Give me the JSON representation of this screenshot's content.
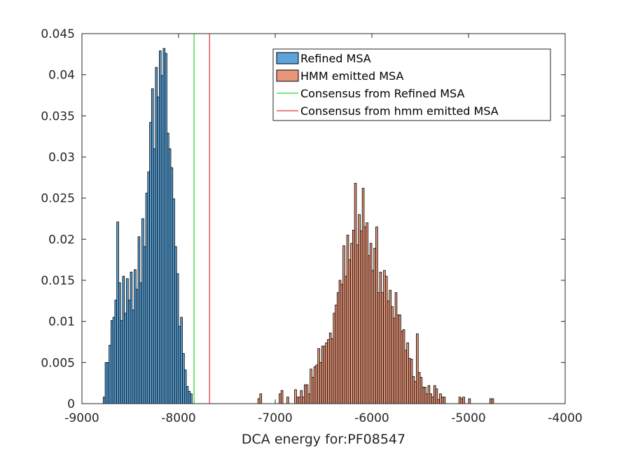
{
  "chart_data": {
    "type": "bar",
    "title": "",
    "xlabel": "DCA energy for:PF08547",
    "ylabel": "",
    "xlim": [
      -9000,
      -4000
    ],
    "ylim": [
      0,
      0.045
    ],
    "grid": false,
    "legend_position": "top-right",
    "x_ticks": [
      -9000,
      -8000,
      -7000,
      -6000,
      -5000,
      -4000
    ],
    "x_tick_labels": [
      "-9000",
      "-8000",
      "-7000",
      "-6000",
      "-5000",
      "-4000"
    ],
    "y_ticks": [
      0,
      0.005,
      0.01,
      0.015,
      0.02,
      0.025,
      0.03,
      0.035,
      0.04,
      0.045
    ],
    "y_tick_labels": [
      "0",
      "0.005",
      "0.01",
      "0.015",
      "0.02",
      "0.025",
      "0.03",
      "0.035",
      "0.04",
      "0.045"
    ],
    "colors": {
      "refined": "#5ba3d8",
      "hmm": "#e8967a",
      "consensus_refined": "#00c800",
      "consensus_hmm": "#dd0000"
    },
    "series": [
      {
        "name": "Refined MSA",
        "kind": "histogram",
        "color": "#5ba3d8",
        "bin_width": 20,
        "bin_start": -8780,
        "values": [
          0.0008,
          0.005,
          0.005,
          0.0071,
          0.0101,
          0.0105,
          0.0126,
          0.0221,
          0.0147,
          0.0101,
          0.0155,
          0.011,
          0.0152,
          0.0126,
          0.016,
          0.0114,
          0.0163,
          0.0139,
          0.0203,
          0.0147,
          0.0225,
          0.0191,
          0.0256,
          0.0282,
          0.0342,
          0.0383,
          0.031,
          0.0409,
          0.0373,
          0.0429,
          0.0399,
          0.0432,
          0.0426,
          0.0329,
          0.031,
          0.0287,
          0.0249,
          0.0191,
          0.0158,
          0.0094,
          0.0105,
          0.0061,
          0.0041,
          0.0021,
          0.0015,
          0.0012
        ]
      },
      {
        "name": "HMM emitted MSA",
        "kind": "histogram",
        "color": "#e8967a",
        "bin_width": 20,
        "bin_start": -7180,
        "values": [
          0.0006,
          0.0012,
          0.0,
          0.0,
          0.0,
          0.0,
          0.0,
          0.0,
          0.0,
          0.0,
          0.0,
          0.0012,
          0.0016,
          0.0,
          0.0,
          0.0008,
          0.0,
          0.0,
          0.0,
          0.0017,
          0.0008,
          0.0008,
          0.0016,
          0.0008,
          0.0023,
          0.0023,
          0.0012,
          0.0042,
          0.0032,
          0.0045,
          0.0047,
          0.0067,
          0.005,
          0.007,
          0.007,
          0.0074,
          0.0078,
          0.0086,
          0.0079,
          0.011,
          0.012,
          0.0135,
          0.015,
          0.0145,
          0.0192,
          0.0155,
          0.0205,
          0.0175,
          0.0195,
          0.0211,
          0.0268,
          0.0193,
          0.023,
          0.021,
          0.0262,
          0.0215,
          0.022,
          0.018,
          0.0195,
          0.0162,
          0.0189,
          0.0215,
          0.0135,
          0.016,
          0.0135,
          0.0162,
          0.0155,
          0.0125,
          0.0138,
          0.0118,
          0.0104,
          0.0135,
          0.0108,
          0.0108,
          0.0088,
          0.009,
          0.0065,
          0.0074,
          0.0055,
          0.0054,
          0.0033,
          0.0027,
          0.0085,
          0.0038,
          0.0032,
          0.002,
          0.002,
          0.0012,
          0.0022,
          0.0012,
          0.0008,
          0.0022,
          0.0018,
          0.0005,
          0.0012,
          0.0008,
          0.0008,
          0.0,
          0.0,
          0.0,
          0.0,
          0.0,
          0.0,
          0.0,
          0.0008,
          0.0006,
          0.0008,
          0.0,
          0.0,
          0.0006,
          0.0,
          0.0,
          0.0,
          0.0,
          0.0,
          0.0,
          0.0,
          0.0,
          0.0,
          0.0,
          0.0006,
          0.0006
        ]
      },
      {
        "name": "Consensus from Refined MSA",
        "kind": "vline",
        "color": "#00c800",
        "x": -7840
      },
      {
        "name": "Consensus from hmm emitted MSA",
        "kind": "vline",
        "color": "#dd0000",
        "x": -7680
      }
    ]
  }
}
